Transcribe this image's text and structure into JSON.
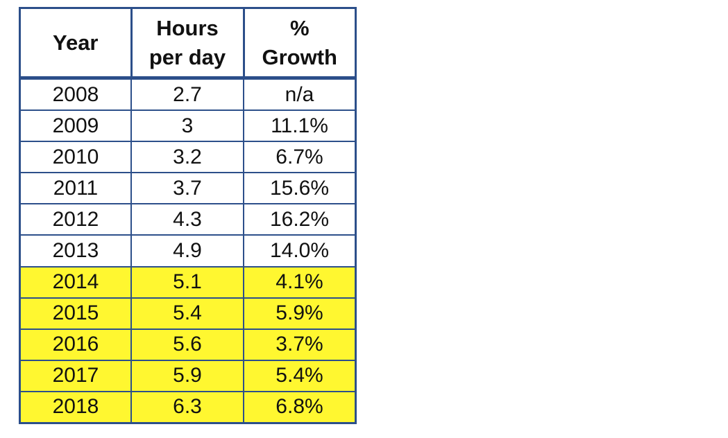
{
  "chart_data": {
    "type": "table",
    "columns": [
      {
        "key": "year",
        "label_lines": [
          "Year"
        ]
      },
      {
        "key": "hours",
        "label_lines": [
          "Hours",
          "per day"
        ]
      },
      {
        "key": "growth",
        "label_lines": [
          "%",
          "Growth"
        ]
      }
    ],
    "rows": [
      {
        "year": "2008",
        "hours": "2.7",
        "growth": "n/a",
        "highlight": false
      },
      {
        "year": "2009",
        "hours": "3",
        "growth": "11.1%",
        "highlight": false
      },
      {
        "year": "2010",
        "hours": "3.2",
        "growth": "6.7%",
        "highlight": false
      },
      {
        "year": "2011",
        "hours": "3.7",
        "growth": "15.6%",
        "highlight": false
      },
      {
        "year": "2012",
        "hours": "4.3",
        "growth": "16.2%",
        "highlight": false
      },
      {
        "year": "2013",
        "hours": "4.9",
        "growth": "14.0%",
        "highlight": false
      },
      {
        "year": "2014",
        "hours": "5.1",
        "growth": "4.1%",
        "highlight": true
      },
      {
        "year": "2015",
        "hours": "5.4",
        "growth": "5.9%",
        "highlight": true
      },
      {
        "year": "2016",
        "hours": "5.6",
        "growth": "3.7%",
        "highlight": true
      },
      {
        "year": "2017",
        "hours": "5.9",
        "growth": "5.4%",
        "highlight": true
      },
      {
        "year": "2018",
        "hours": "6.3",
        "growth": "6.8%",
        "highlight": true
      }
    ],
    "colors": {
      "border": "#2c4f8a",
      "highlight": "#fff730",
      "text": "#111111"
    }
  }
}
